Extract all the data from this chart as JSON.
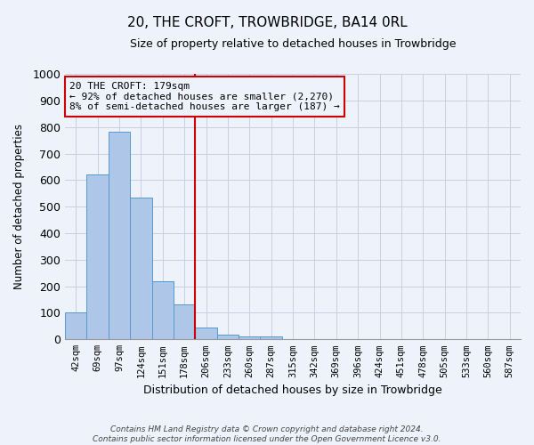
{
  "title": "20, THE CROFT, TROWBRIDGE, BA14 0RL",
  "subtitle": "Size of property relative to detached houses in Trowbridge",
  "xlabel": "Distribution of detached houses by size in Trowbridge",
  "ylabel": "Number of detached properties",
  "bar_labels": [
    "42sqm",
    "69sqm",
    "97sqm",
    "124sqm",
    "151sqm",
    "178sqm",
    "206sqm",
    "233sqm",
    "260sqm",
    "287sqm",
    "315sqm",
    "342sqm",
    "369sqm",
    "396sqm",
    "424sqm",
    "451sqm",
    "478sqm",
    "505sqm",
    "533sqm",
    "560sqm",
    "587sqm"
  ],
  "bar_values": [
    103,
    622,
    783,
    535,
    220,
    133,
    43,
    17,
    12,
    11,
    0,
    0,
    0,
    0,
    0,
    0,
    0,
    0,
    0,
    0,
    0
  ],
  "bar_color": "#aec6e8",
  "bar_edge_color": "#5599cc",
  "vline_index": 5,
  "vline_color": "#cc0000",
  "ylim": [
    0,
    1000
  ],
  "yticks": [
    0,
    100,
    200,
    300,
    400,
    500,
    600,
    700,
    800,
    900,
    1000
  ],
  "annotation_text": "20 THE CROFT: 179sqm\n← 92% of detached houses are smaller (2,270)\n8% of semi-detached houses are larger (187) →",
  "annotation_box_color": "#cc0000",
  "footer_line1": "Contains HM Land Registry data © Crown copyright and database right 2024.",
  "footer_line2": "Contains public sector information licensed under the Open Government Licence v3.0.",
  "bg_color": "#eef2fb",
  "plot_bg_color": "#eef2fb",
  "grid_color": "#c8cfe0"
}
